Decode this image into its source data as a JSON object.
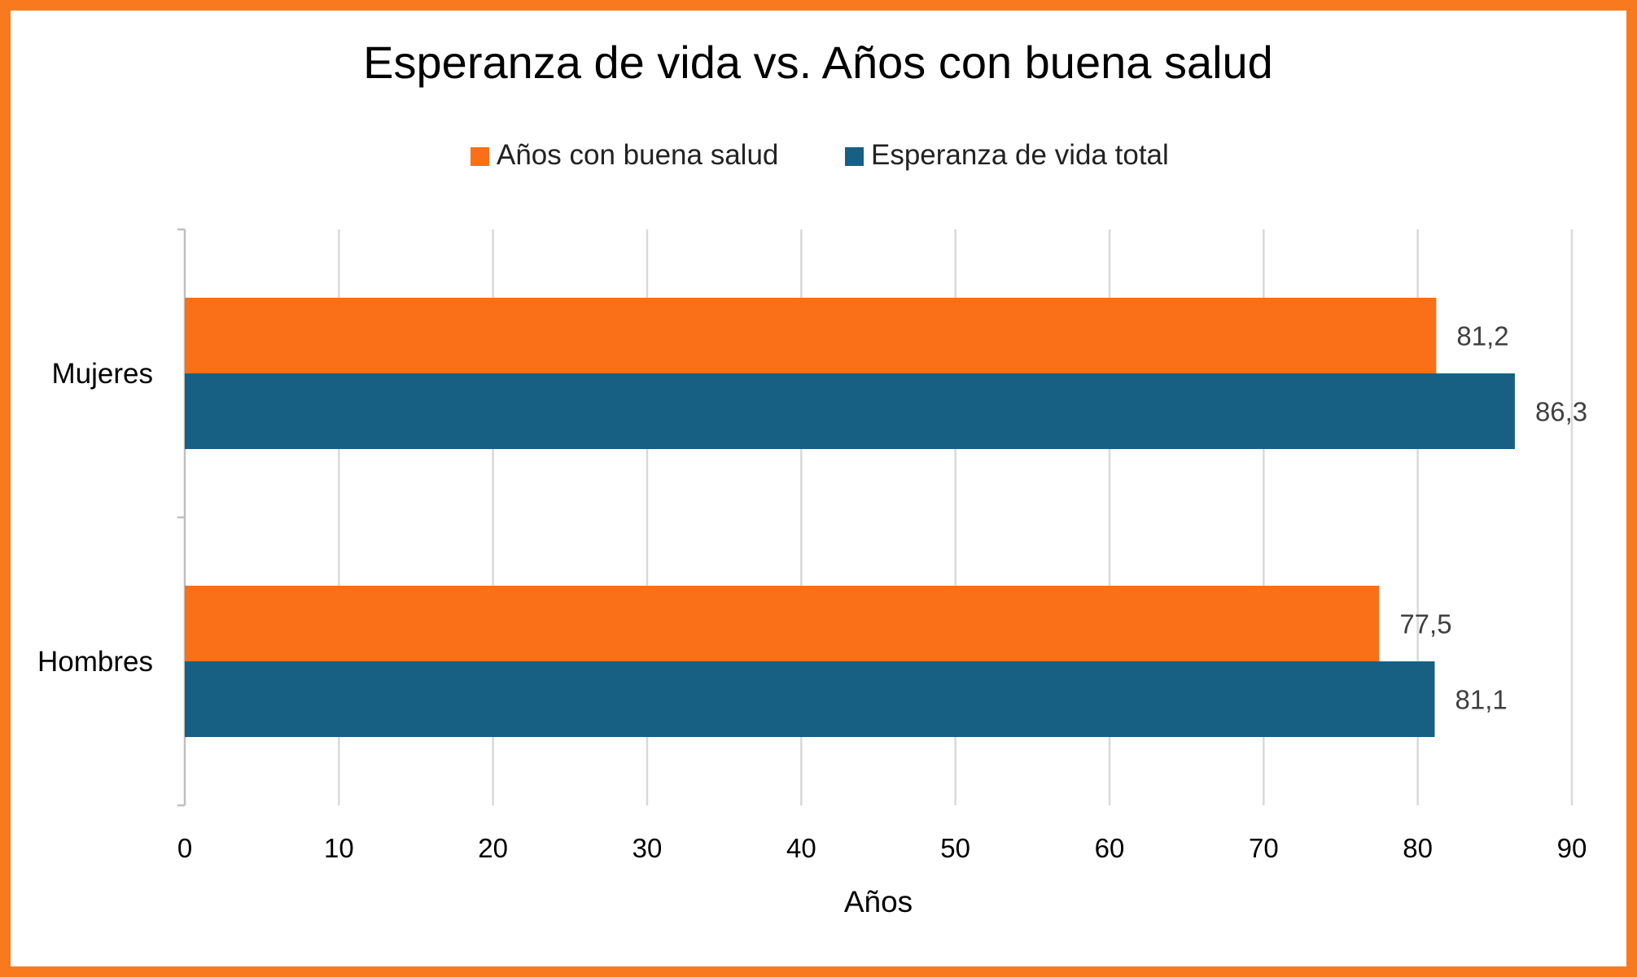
{
  "chart_data": {
    "type": "bar",
    "orientation": "horizontal",
    "title": "Esperanza de vida vs. Años con buena salud",
    "xlabel": "Años",
    "ylabel": "",
    "categories": [
      "Mujeres",
      "Hombres"
    ],
    "series": [
      {
        "name": "Años con buena salud",
        "color": "#F97018",
        "values": [
          81.2,
          77.5
        ],
        "labels": [
          "81,2",
          "77,5"
        ]
      },
      {
        "name": "Esperanza de vida total",
        "color": "#176083",
        "values": [
          86.3,
          81.1
        ],
        "labels": [
          "86,3",
          "81,1"
        ]
      }
    ],
    "xlim": [
      0,
      90
    ],
    "xticks": [
      "0",
      "10",
      "20",
      "30",
      "40",
      "50",
      "60",
      "70",
      "80",
      "90"
    ],
    "grid": true,
    "legend": "top",
    "border_color": "#F97A1E"
  }
}
